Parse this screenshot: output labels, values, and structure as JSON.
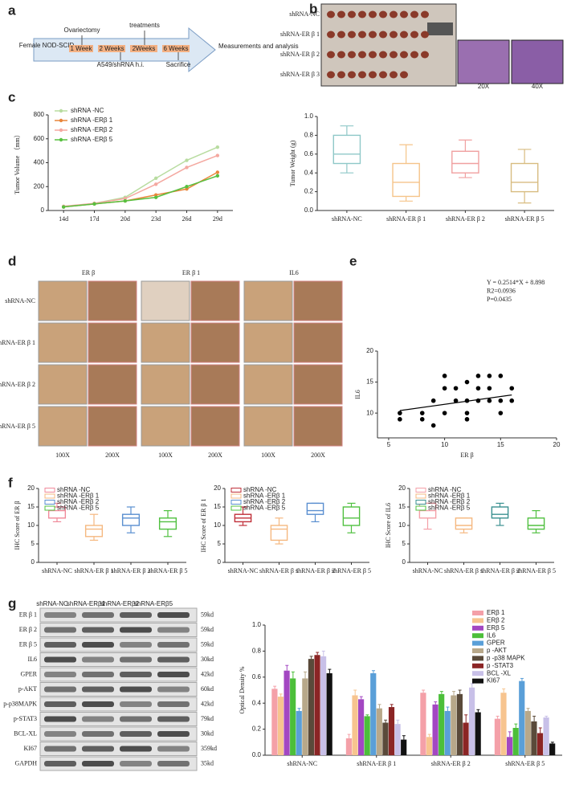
{
  "panel_labels": [
    "a",
    "b",
    "c",
    "d",
    "e",
    "f",
    "g"
  ],
  "timeline": {
    "subject": "Female NOD-SCID",
    "top_labels": [
      "Ovariectomy",
      "treatments"
    ],
    "steps": [
      "1 Week",
      "2 Weeks",
      "2Weeks",
      "6 Weeks"
    ],
    "bottom_labels": [
      "A549/shRNA h.i.",
      "Sacrifice"
    ],
    "end": "Measurements and analysis"
  },
  "photos": {
    "rows": [
      "shRNA-NC",
      "shRNA-ER β 1",
      "shRNA-ER β 2",
      "shRNA-ER β 3"
    ],
    "magnifications": [
      "20X",
      "40X"
    ]
  },
  "ihc": {
    "columns": [
      "ER β",
      "ER β 1",
      "IL6"
    ],
    "rows": [
      "shRNA-NC",
      "shRNA-ER β 1",
      "shRNA-ER β 2",
      "shRNA-ER β 5"
    ],
    "magnifications": [
      "100X",
      "200X"
    ]
  },
  "blot": {
    "lanes": [
      "shRNA-NC",
      "shRNA-ERβ1",
      "shRNA-ERβ2",
      "shRNA-ERβ5"
    ],
    "rows": [
      {
        "protein": "ER β 1",
        "kd": "59kd"
      },
      {
        "protein": "ER β 2",
        "kd": "59kd"
      },
      {
        "protein": "ER β 5",
        "kd": "59kd"
      },
      {
        "protein": "IL6",
        "kd": "30kd"
      },
      {
        "protein": "GPER",
        "kd": "42kd"
      },
      {
        "protein": "p-AKT",
        "kd": "60kd"
      },
      {
        "protein": "p-p38MAPK",
        "kd": "42kd"
      },
      {
        "protein": "p-STAT3",
        "kd": "79kd"
      },
      {
        "protein": "BCL-XL",
        "kd": "30kd"
      },
      {
        "protein": "KI67",
        "kd": "359kd"
      },
      {
        "protein": "GAPDH",
        "kd": "35kd"
      }
    ]
  },
  "chart_data": [
    {
      "type": "line",
      "ylabel": "Tumor Volume （mm）",
      "categories": [
        "14d",
        "17d",
        "20d",
        "23d",
        "26d",
        "29d"
      ],
      "ylim": [
        0,
        800
      ],
      "yticks": [
        0,
        200,
        400,
        600,
        800
      ],
      "legend": "upper left",
      "series": [
        {
          "name": "shRNA -NC",
          "color": "#b8dca0",
          "values": [
            30,
            60,
            110,
            270,
            420,
            530
          ]
        },
        {
          "name": "shRNA -ERβ 1",
          "color": "#e8853a",
          "values": [
            30,
            55,
            80,
            130,
            180,
            320
          ]
        },
        {
          "name": "shRNA -ERβ 2",
          "color": "#f4a8a0",
          "values": [
            35,
            60,
            100,
            220,
            360,
            460
          ]
        },
        {
          "name": "shRNA -ERβ 5",
          "color": "#58c040",
          "values": [
            30,
            55,
            80,
            110,
            200,
            290
          ]
        }
      ]
    },
    {
      "type": "box",
      "ylabel": "Tumor Weight (g)",
      "categories": [
        "shRNA-NC",
        "shRNA-ER β 1",
        "shRNA-ER β 2",
        "shRNA-ER β 5"
      ],
      "colors": [
        "#8fc8c8",
        "#f5c48a",
        "#f0a0a0",
        "#d8bc80"
      ],
      "ylim": [
        0,
        1
      ],
      "yticks": [
        {
          "value": 0,
          "label": "0.0"
        },
        0.2,
        0.4,
        0.6,
        0.8,
        {
          "value": 1,
          "label": "1.0"
        }
      ],
      "boxes": [
        {
          "min": 0.4,
          "q1": 0.5,
          "median": 0.6,
          "q3": 0.8,
          "max": 0.9
        },
        {
          "min": 0.1,
          "q1": 0.15,
          "median": 0.3,
          "q3": 0.5,
          "max": 0.7
        },
        {
          "min": 0.35,
          "q1": 0.4,
          "median": 0.5,
          "q3": 0.63,
          "max": 0.75
        },
        {
          "min": 0.08,
          "q1": 0.2,
          "median": 0.3,
          "q3": 0.5,
          "max": 0.65
        }
      ]
    },
    {
      "type": "scatter",
      "xlabel": "ER β",
      "ylabel": "IL6",
      "annotations": [
        "Y = 0.2514*X + 8.898",
        "R2=0.0936",
        "P=0.0435"
      ],
      "fit": {
        "slope": 0.2514,
        "intercept": 8.898
      },
      "color": "#000000",
      "xlim": [
        4,
        20
      ],
      "xticks": [
        5,
        10,
        15,
        20
      ],
      "ylim": [
        6,
        20
      ],
      "yticks": [
        10,
        15,
        20
      ],
      "x": [
        6,
        6,
        8,
        8,
        9,
        9,
        10,
        10,
        10,
        11,
        11,
        12,
        12,
        12,
        13,
        13,
        14,
        14,
        15,
        15,
        15,
        16,
        16,
        12,
        13,
        14
      ],
      "y": [
        10,
        9,
        10,
        9,
        8,
        12,
        16,
        14,
        10,
        12,
        14,
        12,
        9,
        10,
        12,
        14,
        16,
        12,
        16,
        10,
        12,
        14,
        12,
        15,
        16,
        14
      ]
    },
    {
      "type": "box",
      "ylabel": "IHC Score of ER β",
      "categories": [
        "shRNA-NC",
        "shRNA-ER β 1",
        "shRNA-ER β 2",
        "shRNA-ER β 5"
      ],
      "legend": [
        "shRNA -NC",
        "shRNA -ERβ 1",
        "shRNA -ERβ 2",
        "shRNA -ERβ 5"
      ],
      "colors": [
        "#f08a9a",
        "#f5b880",
        "#5a8fd0",
        "#50c040"
      ],
      "ylim": [
        0,
        20
      ],
      "yticks": [
        0,
        5,
        10,
        15,
        20
      ],
      "boxes": [
        {
          "min": 11,
          "q1": 12,
          "median": 14,
          "q3": 15,
          "max": 16
        },
        {
          "min": 6,
          "q1": 7,
          "median": 9,
          "q3": 10,
          "max": 13
        },
        {
          "min": 8,
          "q1": 10,
          "median": 12,
          "q3": 13,
          "max": 15
        },
        {
          "min": 7,
          "q1": 9,
          "median": 11,
          "q3": 12,
          "max": 14
        }
      ]
    },
    {
      "type": "box",
      "ylabel": "IHC Score of ER β 1",
      "categories": [
        "shRNA-NC",
        "shRNA-ER β 1",
        "shRNA-ER β 2",
        "shRNA-ER β 5"
      ],
      "legend": [
        "shRNA -NC",
        "shRNA -ERβ 1",
        "shRNA -ERβ 2",
        "shRNA -ERβ 5"
      ],
      "colors": [
        "#c0303a",
        "#f5b880",
        "#5a8fd0",
        "#50c040"
      ],
      "ylim": [
        0,
        20
      ],
      "yticks": [
        0,
        5,
        10,
        15,
        20
      ],
      "boxes": [
        {
          "min": 10,
          "q1": 11,
          "median": 12,
          "q3": 13,
          "max": 15
        },
        {
          "min": 5,
          "q1": 6,
          "median": 9,
          "q3": 10,
          "max": 12
        },
        {
          "min": 11,
          "q1": 13,
          "median": 14,
          "q3": 16,
          "max": 16
        },
        {
          "min": 8,
          "q1": 10,
          "median": 12,
          "q3": 15,
          "max": 16
        }
      ]
    },
    {
      "type": "box",
      "ylabel": "IHC Score of IL6",
      "categories": [
        "shRNA-NC",
        "shRNA-ER β 1",
        "shRNA-ER β 2",
        "shRNA-ER β 5"
      ],
      "legend": [
        "shRNA -NC",
        "shRNA -ERβ 1",
        "shRNA -ERβ 2",
        "shRNA -ERβ 5"
      ],
      "colors": [
        "#f4a0a8",
        "#f5b880",
        "#3a9090",
        "#50c040"
      ],
      "ylim": [
        0,
        20
      ],
      "yticks": [
        0,
        5,
        10,
        15,
        20
      ],
      "boxes": [
        {
          "min": 9,
          "q1": 12,
          "median": 14,
          "q3": 16,
          "max": 16
        },
        {
          "min": 8,
          "q1": 9,
          "median": 10,
          "q3": 12,
          "max": 12
        },
        {
          "min": 10,
          "q1": 12,
          "median": 13,
          "q3": 15,
          "max": 16
        },
        {
          "min": 8,
          "q1": 9,
          "median": 10,
          "q3": 12,
          "max": 14
        }
      ]
    },
    {
      "type": "bar",
      "ylabel": "Optical Density %",
      "categories": [
        "shRNA-NC",
        "shRNA-ER β 1",
        "shRNA-ER β 2",
        "shRNA-ER β 5"
      ],
      "ylim": [
        0,
        1
      ],
      "yticks": [
        {
          "value": 0,
          "label": "0.0"
        },
        0.2,
        0.4,
        0.6,
        0.8,
        {
          "value": 1,
          "label": "1.0"
        }
      ],
      "legend": "upper right",
      "series": [
        {
          "name": "ERβ 1",
          "color": "#f4a0a8",
          "values": [
            0.51,
            0.13,
            0.48,
            0.28
          ],
          "errors": [
            0.02,
            0.03,
            0.02,
            0.02
          ]
        },
        {
          "name": "ERβ 2",
          "color": "#f7c48f",
          "values": [
            0.45,
            0.46,
            0.14,
            0.48
          ],
          "errors": [
            0.02,
            0.04,
            0.02,
            0.03
          ]
        },
        {
          "name": "ERβ 5",
          "color": "#a347c2",
          "values": [
            0.65,
            0.43,
            0.39,
            0.14
          ],
          "errors": [
            0.04,
            0.02,
            0.02,
            0.04
          ]
        },
        {
          "name": "IL6",
          "color": "#4cbf3a",
          "values": [
            0.59,
            0.3,
            0.47,
            0.21
          ],
          "errors": [
            0.05,
            0.01,
            0.02,
            0.03
          ]
        },
        {
          "name": "GPER",
          "color": "#5a9fd8",
          "values": [
            0.34,
            0.63,
            0.34,
            0.57
          ],
          "errors": [
            0.02,
            0.02,
            0.03,
            0.02
          ]
        },
        {
          "name": "p -AKT",
          "color": "#b8a88a",
          "values": [
            0.59,
            0.36,
            0.46,
            0.34
          ],
          "errors": [
            0.05,
            0.03,
            0.03,
            0.02
          ]
        },
        {
          "name": "p -p38 MAPK",
          "color": "#5a4a3a",
          "values": [
            0.74,
            0.25,
            0.47,
            0.26
          ],
          "errors": [
            0.02,
            0.02,
            0.03,
            0.04
          ]
        },
        {
          "name": "p -STAT3",
          "color": "#8b2525",
          "values": [
            0.77,
            0.37,
            0.25,
            0.17
          ],
          "errors": [
            0.02,
            0.02,
            0.06,
            0.04
          ]
        },
        {
          "name": "BCL -XL",
          "color": "#c8c0e8",
          "values": [
            0.76,
            0.24,
            0.52,
            0.29
          ],
          "errors": [
            0.04,
            0.03,
            0.03,
            0.01
          ]
        },
        {
          "name": "KI67",
          "color": "#111111",
          "values": [
            0.63,
            0.12,
            0.33,
            0.09
          ],
          "errors": [
            0.03,
            0.03,
            0.02,
            0.01
          ]
        }
      ]
    }
  ]
}
